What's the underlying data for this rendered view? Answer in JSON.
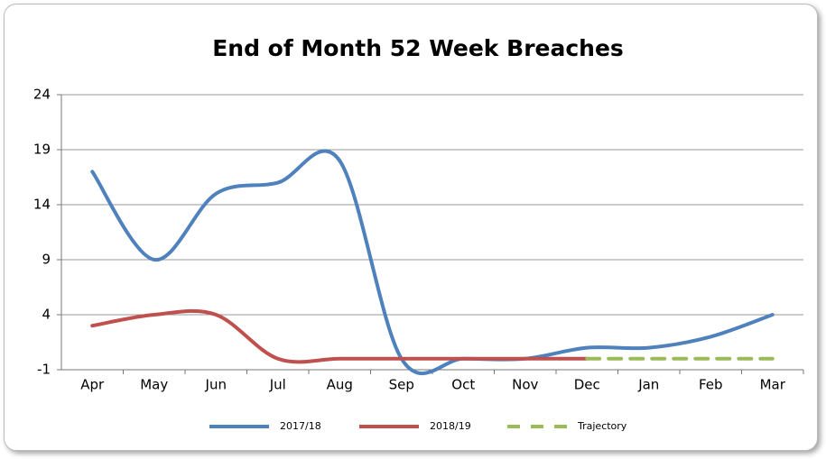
{
  "chart_data": {
    "type": "line",
    "title": "End of Month 52 Week Breaches",
    "categories": [
      "Apr",
      "May",
      "Jun",
      "Jul",
      "Aug",
      "Sep",
      "Oct",
      "Nov",
      "Dec",
      "Jan",
      "Feb",
      "Mar"
    ],
    "series": [
      {
        "name": "2017/18",
        "color": "#4f81bd",
        "values": [
          17,
          9,
          15,
          16,
          18,
          0,
          0,
          0,
          1,
          1,
          2,
          4
        ]
      },
      {
        "name": "2018/19",
        "color": "#c0504d",
        "values": [
          3,
          4,
          4,
          0,
          0,
          0,
          0,
          0,
          0,
          null,
          null,
          null
        ]
      },
      {
        "name": "Trajectory",
        "color": "#9bbb59",
        "dashed": true,
        "values": [
          null,
          null,
          null,
          null,
          null,
          null,
          null,
          null,
          0,
          0,
          0,
          0
        ]
      }
    ],
    "ylim": [
      -1,
      24
    ],
    "yticks": [
      -1,
      4,
      9,
      14,
      19,
      24
    ],
    "grid": true,
    "legend": "bottom",
    "smooth": true
  }
}
